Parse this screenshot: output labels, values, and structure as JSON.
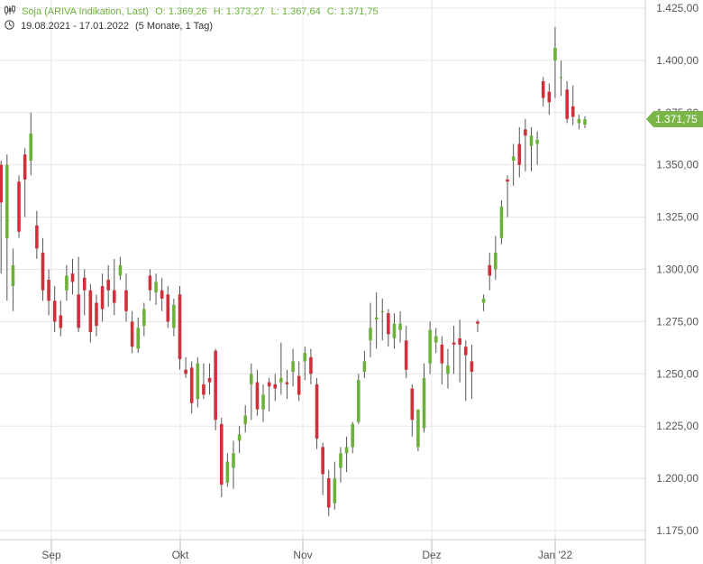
{
  "header": {
    "instrument": "Soja (ARIVA Indikation, Last)",
    "open": "O: 1.369,26",
    "high": "H: 1.373,27",
    "low": "L: 1.367,64",
    "close": "C: 1.371,75",
    "range": "19.08.2021 - 17.01.2022",
    "period": "(5 Monate, 1 Tag)",
    "icons": [
      "candlestick-icon",
      "clock-icon"
    ]
  },
  "last_price_label": "1.371,75",
  "colors": {
    "up": "#6cb23a",
    "down": "#d0303a",
    "wick": "#555555",
    "grid": "#e6e6e6",
    "tag": "#7ab547"
  },
  "chart_data": {
    "type": "candlestick",
    "x_tick_labels": [
      "Sep",
      "Okt",
      "Nov",
      "Dez",
      "Jan '22"
    ],
    "y_tick_labels": [
      "1.425,00",
      "1.400,00",
      "1.375,00",
      "1.350,00",
      "1.325,00",
      "1.300,00",
      "1.275,00",
      "1.250,00",
      "1.225,00",
      "1.200,00",
      "1.175,00"
    ],
    "ylim": [
      1175,
      1425
    ],
    "grid": true,
    "candles": [
      [
        1350,
        1332,
        1352,
        1298
      ],
      [
        1315,
        1350,
        1355,
        1285
      ],
      [
        1292,
        1302,
        1310,
        1280
      ],
      [
        1342,
        1318,
        1345,
        1315
      ],
      [
        1355,
        1343,
        1358,
        1325
      ],
      [
        1352,
        1365,
        1375,
        1345
      ],
      [
        1321,
        1310,
        1328,
        1305
      ],
      [
        1308,
        1290,
        1315,
        1285
      ],
      [
        1295,
        1285,
        1300,
        1278
      ],
      [
        1285,
        1275,
        1292,
        1270
      ],
      [
        1278,
        1272,
        1285,
        1268
      ],
      [
        1290,
        1297,
        1302,
        1285
      ],
      [
        1298,
        1294,
        1305,
        1288
      ],
      [
        1288,
        1272,
        1306,
        1270
      ],
      [
        1296,
        1290,
        1300,
        1278
      ],
      [
        1290,
        1270,
        1293,
        1265
      ],
      [
        1284,
        1273,
        1288,
        1268
      ],
      [
        1292,
        1281,
        1298,
        1275
      ],
      [
        1295,
        1290,
        1302,
        1282
      ],
      [
        1290,
        1284,
        1305,
        1278
      ],
      [
        1297,
        1302,
        1306,
        1295
      ],
      [
        1290,
        1280,
        1298,
        1275
      ],
      [
        1275,
        1263,
        1280,
        1260
      ],
      [
        1262,
        1272,
        1277,
        1260
      ],
      [
        1273,
        1281,
        1284,
        1268
      ],
      [
        1297,
        1290,
        1300,
        1285
      ],
      [
        1289,
        1294,
        1298,
        1283
      ],
      [
        1290,
        1286,
        1296,
        1280
      ],
      [
        1288,
        1275,
        1292,
        1272
      ],
      [
        1272,
        1283,
        1286,
        1268
      ],
      [
        1288,
        1257,
        1292,
        1252
      ],
      [
        1252,
        1250,
        1258,
        1248
      ],
      [
        1253,
        1236,
        1256,
        1231
      ],
      [
        1238,
        1255,
        1258,
        1234
      ],
      [
        1245,
        1240,
        1255,
        1238
      ],
      [
        1248,
        1246,
        1255,
        1240
      ],
      [
        1261,
        1228,
        1262,
        1223
      ],
      [
        1226,
        1197,
        1229,
        1191
      ],
      [
        1198,
        1208,
        1212,
        1196
      ],
      [
        1205,
        1212,
        1218,
        1195
      ],
      [
        1218,
        1221,
        1225,
        1212
      ],
      [
        1226,
        1230,
        1235,
        1222
      ],
      [
        1245,
        1250,
        1255,
        1228
      ],
      [
        1246,
        1233,
        1252,
        1230
      ],
      [
        1233,
        1240,
        1245,
        1227
      ],
      [
        1246,
        1244,
        1248,
        1232
      ],
      [
        1245,
        1243,
        1250,
        1237
      ],
      [
        1246,
        1248,
        1265,
        1240
      ],
      [
        1246,
        1245,
        1252,
        1238
      ],
      [
        1251,
        1256,
        1262,
        1244
      ],
      [
        1249,
        1240,
        1256,
        1237
      ],
      [
        1256,
        1260,
        1263,
        1247
      ],
      [
        1258,
        1250,
        1262,
        1245
      ],
      [
        1245,
        1219,
        1248,
        1214
      ],
      [
        1215,
        1202,
        1217,
        1192
      ],
      [
        1200,
        1186,
        1204,
        1182
      ],
      [
        1188,
        1200,
        1208,
        1185
      ],
      [
        1205,
        1212,
        1215,
        1198
      ],
      [
        1212,
        1215,
        1220,
        1203
      ],
      [
        1215,
        1226,
        1227,
        1212
      ],
      [
        1227,
        1247,
        1250,
        1226
      ],
      [
        1251,
        1256,
        1261,
        1248
      ],
      [
        1266,
        1272,
        1284,
        1258
      ],
      [
        1276,
        1277,
        1289,
        1262
      ],
      [
        1280,
        1280,
        1286,
        1266
      ],
      [
        1279,
        1269,
        1281,
        1263
      ],
      [
        1267,
        1274,
        1279,
        1262
      ],
      [
        1271,
        1274,
        1280,
        1265
      ],
      [
        1266,
        1252,
        1273,
        1248
      ],
      [
        1243,
        1228,
        1245,
        1220
      ],
      [
        1215,
        1233,
        1232,
        1213
      ],
      [
        1224,
        1248,
        1255,
        1222
      ],
      [
        1255,
        1271,
        1275,
        1250
      ],
      [
        1265,
        1268,
        1272,
        1260
      ],
      [
        1264,
        1255,
        1268,
        1245
      ],
      [
        1250,
        1254,
        1262,
        1243
      ],
      [
        1265,
        1264,
        1273,
        1250
      ],
      [
        1267,
        1264,
        1276,
        1246
      ],
      [
        1263,
        1259,
        1266,
        1237
      ],
      [
        1256,
        1251,
        1264,
        1238
      ],
      [
        1275,
        1274,
        1276,
        1270
      ],
      [
        1284,
        1286,
        1288,
        1280
      ],
      [
        1302,
        1297,
        1308,
        1290
      ],
      [
        1300,
        1308,
        1316,
        1295
      ],
      [
        1315,
        1330,
        1333,
        1312
      ],
      [
        1343,
        1342,
        1345,
        1325
      ],
      [
        1352,
        1354,
        1360,
        1340
      ],
      [
        1360,
        1350,
        1368,
        1344
      ],
      [
        1367,
        1364,
        1372,
        1347
      ],
      [
        1359,
        1364,
        1368,
        1347
      ],
      [
        1360,
        1362,
        1366,
        1350
      ],
      [
        1390,
        1382,
        1392,
        1378
      ],
      [
        1385,
        1380,
        1389,
        1374
      ],
      [
        1400,
        1406,
        1416,
        1382
      ],
      [
        1392,
        1392,
        1400,
        1383
      ],
      [
        1386,
        1372,
        1390,
        1370
      ],
      [
        1378,
        1373,
        1388,
        1369
      ],
      [
        1370,
        1372,
        1374,
        1367
      ],
      [
        1369.26,
        1371.75,
        1373.27,
        1367.64
      ]
    ]
  }
}
